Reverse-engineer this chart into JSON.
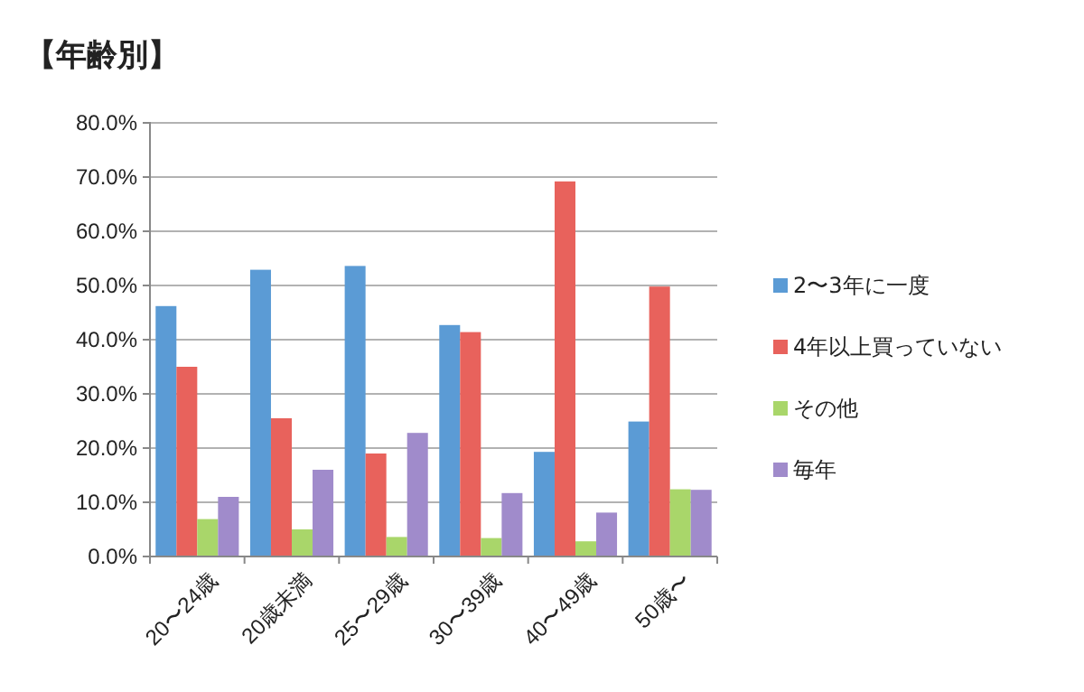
{
  "chart_data": {
    "type": "bar",
    "title": "【年齢別】",
    "categories": [
      "20〜24歳",
      "20歳未満",
      "25〜29歳",
      "30〜39歳",
      "40〜49歳",
      "50歳〜"
    ],
    "series": [
      {
        "name": "2〜3年に一度",
        "color": "#5b9bd5",
        "values": [
          46.2,
          52.9,
          53.6,
          42.7,
          19.3,
          24.9
        ]
      },
      {
        "name": "4年以上買っていない",
        "color": "#e8625c",
        "values": [
          35.0,
          25.5,
          19.0,
          41.4,
          69.2,
          49.8
        ]
      },
      {
        "name": "その他",
        "color": "#a9d66a",
        "values": [
          6.9,
          5.0,
          3.6,
          3.4,
          2.8,
          12.4
        ]
      },
      {
        "name": "毎年",
        "color": "#a08bcb",
        "values": [
          11.0,
          16.0,
          22.8,
          11.7,
          8.1,
          12.3
        ]
      }
    ],
    "ylim": [
      0,
      80
    ],
    "yticks": [
      {
        "value": 0,
        "label": "0.0%"
      },
      {
        "value": 10,
        "label": "10.0%"
      },
      {
        "value": 20,
        "label": "20.0%"
      },
      {
        "value": 30,
        "label": "30.0%"
      },
      {
        "value": 40,
        "label": "40.0%"
      },
      {
        "value": 50,
        "label": "50.0%"
      },
      {
        "value": 60,
        "label": "60.0%"
      },
      {
        "value": 70,
        "label": "70.0%"
      },
      {
        "value": 80,
        "label": "80.0%"
      }
    ],
    "grid": "y",
    "legend": "right"
  }
}
